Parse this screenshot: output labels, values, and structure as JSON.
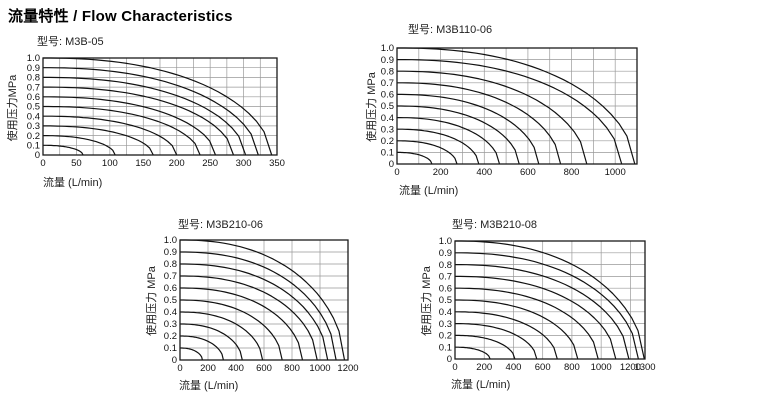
{
  "page": {
    "title": "流量特性 / Flow Characteristics"
  },
  "chart_data": [
    {
      "type": "line",
      "model": "M3B-05",
      "header": "型号: M3B-05",
      "xlabel": "流量 (L/min)",
      "ylabel": "使用压力MPa",
      "x_unit": "L/min",
      "y_unit": "MPa",
      "xlim": [
        0,
        350
      ],
      "ylim": [
        0,
        1.0
      ],
      "x_grid_step": 25,
      "y_grid_step": 0.1,
      "x_ticks": [
        0,
        50,
        100,
        150,
        200,
        250,
        300,
        350
      ],
      "y_ticks": [
        "1.0",
        "0.9",
        "0.8",
        "0.7",
        "0.6",
        "0.5",
        "0.4",
        "0.3",
        "0.2",
        "0.1",
        "0"
      ],
      "grid": true,
      "legend": false,
      "series": [
        {
          "name": "0.1 MPa",
          "inlet_pressure_mpa": 0.1,
          "max_flow_l_min": 60
        },
        {
          "name": "0.2 MPa",
          "inlet_pressure_mpa": 0.2,
          "max_flow_l_min": 108
        },
        {
          "name": "0.3 MPa",
          "inlet_pressure_mpa": 0.3,
          "max_flow_l_min": 165
        },
        {
          "name": "0.4 MPa",
          "inlet_pressure_mpa": 0.4,
          "max_flow_l_min": 200
        },
        {
          "name": "0.5 MPa",
          "inlet_pressure_mpa": 0.5,
          "max_flow_l_min": 235
        },
        {
          "name": "0.6 MPa",
          "inlet_pressure_mpa": 0.6,
          "max_flow_l_min": 258
        },
        {
          "name": "0.7 MPa",
          "inlet_pressure_mpa": 0.7,
          "max_flow_l_min": 285
        },
        {
          "name": "0.8 MPa",
          "inlet_pressure_mpa": 0.8,
          "max_flow_l_min": 303
        },
        {
          "name": "0.9 MPa",
          "inlet_pressure_mpa": 0.9,
          "max_flow_l_min": 322
        },
        {
          "name": "1.0 MPa",
          "inlet_pressure_mpa": 1.0,
          "max_flow_l_min": 342
        }
      ]
    },
    {
      "type": "line",
      "model": "M3B110-06",
      "header": "型号: M3B110-06",
      "xlabel": "流量 (L/min)",
      "ylabel": "使用压力 MPa",
      "x_unit": "L/min",
      "y_unit": "MPa",
      "xlim": [
        0,
        1100
      ],
      "ylim": [
        0,
        1.0
      ],
      "x_grid_step": 100,
      "y_grid_step": 0.1,
      "x_ticks": [
        0,
        200,
        400,
        600,
        800,
        1000
      ],
      "y_ticks": [
        "1.0",
        "0.9",
        "0.8",
        "0.7",
        "0.6",
        "0.5",
        "0.4",
        "0.3",
        "0.2",
        "0.1",
        "0"
      ],
      "grid": true,
      "legend": false,
      "series": [
        {
          "name": "0.1 MPa",
          "inlet_pressure_mpa": 0.1,
          "max_flow_l_min": 160
        },
        {
          "name": "0.2 MPa",
          "inlet_pressure_mpa": 0.2,
          "max_flow_l_min": 275
        },
        {
          "name": "0.3 MPa",
          "inlet_pressure_mpa": 0.3,
          "max_flow_l_min": 375
        },
        {
          "name": "0.4 MPa",
          "inlet_pressure_mpa": 0.4,
          "max_flow_l_min": 470
        },
        {
          "name": "0.5 MPa",
          "inlet_pressure_mpa": 0.5,
          "max_flow_l_min": 560
        },
        {
          "name": "0.6 MPa",
          "inlet_pressure_mpa": 0.6,
          "max_flow_l_min": 650
        },
        {
          "name": "0.7 MPa",
          "inlet_pressure_mpa": 0.7,
          "max_flow_l_min": 750
        },
        {
          "name": "0.8 MPa",
          "inlet_pressure_mpa": 0.8,
          "max_flow_l_min": 870
        },
        {
          "name": "0.9 MPa",
          "inlet_pressure_mpa": 0.9,
          "max_flow_l_min": 1030
        },
        {
          "name": "1.0 MPa",
          "inlet_pressure_mpa": 1.0,
          "max_flow_l_min": 1090
        }
      ]
    },
    {
      "type": "line",
      "model": "M3B210-06",
      "header": "型号: M3B210-06",
      "xlabel": "流量 (L/min)",
      "ylabel": "使用压力 MPa",
      "x_unit": "L/min",
      "y_unit": "MPa",
      "xlim": [
        0,
        1200
      ],
      "ylim": [
        0,
        1.0
      ],
      "x_grid_step": 200,
      "y_grid_step": 0.1,
      "x_ticks": [
        0,
        200,
        400,
        600,
        800,
        1000,
        1200
      ],
      "y_ticks": [
        "1.0",
        "0.9",
        "0.8",
        "0.7",
        "0.6",
        "0.5",
        "0.4",
        "0.3",
        "0.2",
        "0.1",
        "0"
      ],
      "grid": true,
      "legend": false,
      "series": [
        {
          "name": "0.1 MPa",
          "inlet_pressure_mpa": 0.1,
          "max_flow_l_min": 160
        },
        {
          "name": "0.2 MPa",
          "inlet_pressure_mpa": 0.2,
          "max_flow_l_min": 310
        },
        {
          "name": "0.3 MPa",
          "inlet_pressure_mpa": 0.3,
          "max_flow_l_min": 445
        },
        {
          "name": "0.4 MPa",
          "inlet_pressure_mpa": 0.4,
          "max_flow_l_min": 590
        },
        {
          "name": "0.5 MPa",
          "inlet_pressure_mpa": 0.5,
          "max_flow_l_min": 730
        },
        {
          "name": "0.6 MPa",
          "inlet_pressure_mpa": 0.6,
          "max_flow_l_min": 875
        },
        {
          "name": "0.7 MPa",
          "inlet_pressure_mpa": 0.7,
          "max_flow_l_min": 980
        },
        {
          "name": "0.8 MPa",
          "inlet_pressure_mpa": 0.8,
          "max_flow_l_min": 1055
        },
        {
          "name": "0.9 MPa",
          "inlet_pressure_mpa": 0.9,
          "max_flow_l_min": 1115
        },
        {
          "name": "1.0 MPa",
          "inlet_pressure_mpa": 1.0,
          "max_flow_l_min": 1175
        }
      ]
    },
    {
      "type": "line",
      "model": "M3B210-08",
      "header": "型号: M3B210-08",
      "xlabel": "流量 (L/min)",
      "ylabel": "使用压力 MPa",
      "x_unit": "L/min",
      "y_unit": "MPa",
      "xlim": [
        0,
        1300
      ],
      "ylim": [
        0,
        1.0
      ],
      "x_grid_step": 200,
      "y_grid_step": 0.1,
      "x_ticks": [
        0,
        200,
        400,
        600,
        800,
        1000,
        1200,
        1300
      ],
      "y_ticks": [
        "1.0",
        "0.9",
        "0.8",
        "0.7",
        "0.6",
        "0.5",
        "0.4",
        "0.3",
        "0.2",
        "0.1",
        "0"
      ],
      "grid": true,
      "legend": false,
      "series": [
        {
          "name": "0.1 MPa",
          "inlet_pressure_mpa": 0.1,
          "max_flow_l_min": 240
        },
        {
          "name": "0.2 MPa",
          "inlet_pressure_mpa": 0.2,
          "max_flow_l_min": 410
        },
        {
          "name": "0.3 MPa",
          "inlet_pressure_mpa": 0.3,
          "max_flow_l_min": 560
        },
        {
          "name": "0.4 MPa",
          "inlet_pressure_mpa": 0.4,
          "max_flow_l_min": 700
        },
        {
          "name": "0.5 MPa",
          "inlet_pressure_mpa": 0.5,
          "max_flow_l_min": 840
        },
        {
          "name": "0.6 MPa",
          "inlet_pressure_mpa": 0.6,
          "max_flow_l_min": 980
        },
        {
          "name": "0.7 MPa",
          "inlet_pressure_mpa": 0.7,
          "max_flow_l_min": 1100
        },
        {
          "name": "0.8 MPa",
          "inlet_pressure_mpa": 0.8,
          "max_flow_l_min": 1190
        },
        {
          "name": "0.9 MPa",
          "inlet_pressure_mpa": 0.9,
          "max_flow_l_min": 1255
        },
        {
          "name": "1.0 MPa",
          "inlet_pressure_mpa": 1.0,
          "max_flow_l_min": 1295
        }
      ]
    }
  ],
  "style": {
    "curve_color": "#111111",
    "grid_color": "#999999",
    "border_color": "#1a1a1a",
    "background": "#ffffff"
  }
}
